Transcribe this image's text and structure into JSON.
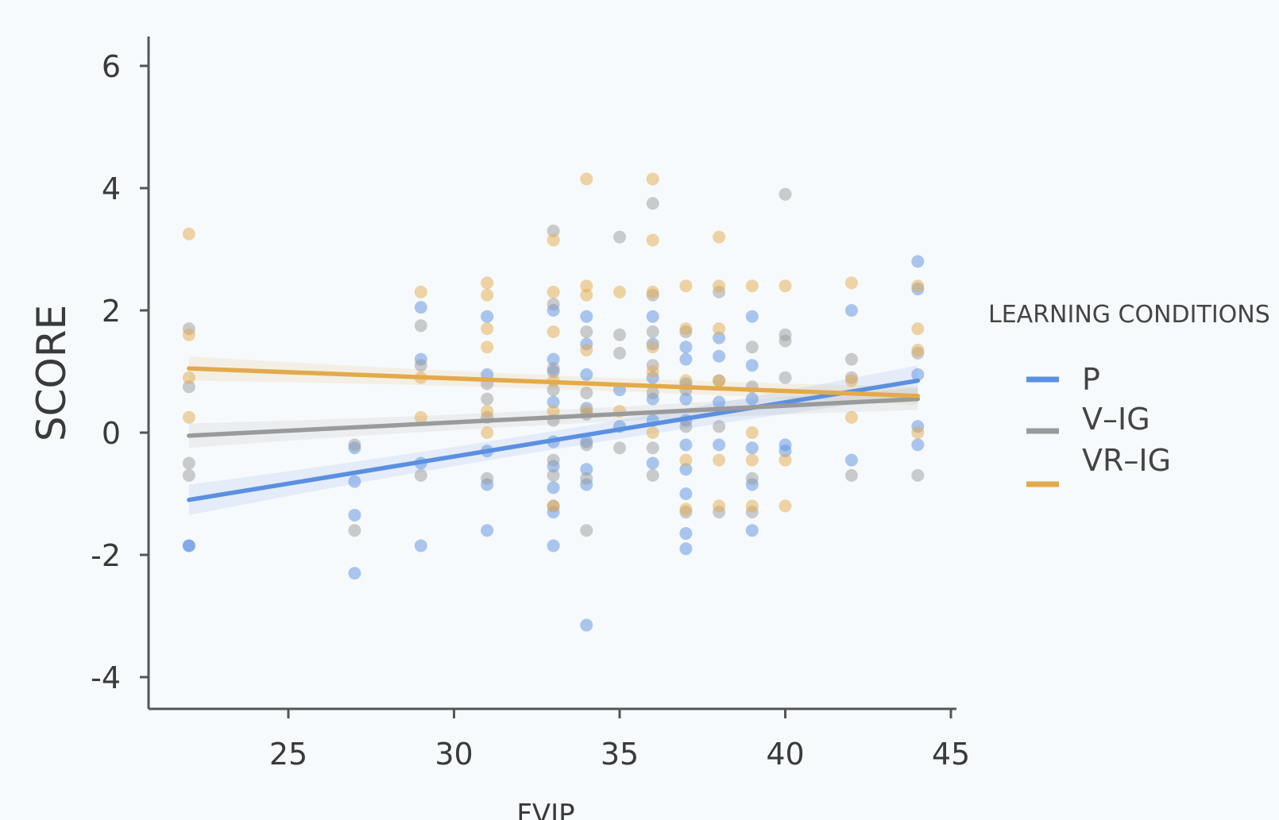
{
  "chart_data": {
    "type": "scatter",
    "xlabel": "FVIP",
    "ylabel": "SCORE",
    "xlim": [
      17.8,
      45
    ],
    "ylim": [
      -4.5,
      6.5
    ],
    "xticks": [
      25,
      30,
      35,
      40,
      45
    ],
    "yticks": [
      -4,
      -2,
      0,
      2,
      4,
      6
    ],
    "grid": false,
    "legend": {
      "title": "LEARNING CONDITIONS",
      "placement": "right"
    },
    "series": [
      {
        "name": "P",
        "color": "#5b8fe0",
        "fit": [
          [
            22,
            -1.1
          ],
          [
            44,
            0.85
          ]
        ],
        "band": [
          0.25,
          0.05,
          0.25
        ],
        "points": [
          [
            22,
            -1.85
          ],
          [
            22,
            -1.85
          ],
          [
            27,
            -0.25
          ],
          [
            27,
            -0.8
          ],
          [
            27,
            -1.35
          ],
          [
            27,
            -2.3
          ],
          [
            29,
            2.05
          ],
          [
            29,
            1.2
          ],
          [
            29,
            -0.5
          ],
          [
            29,
            -1.85
          ],
          [
            31,
            1.9
          ],
          [
            31,
            0.95
          ],
          [
            31,
            -0.3
          ],
          [
            31,
            -0.85
          ],
          [
            31,
            -1.6
          ],
          [
            33,
            2.0
          ],
          [
            33,
            1.2
          ],
          [
            33,
            1.0
          ],
          [
            33,
            0.5
          ],
          [
            33,
            -0.15
          ],
          [
            33,
            -0.55
          ],
          [
            33,
            -0.9
          ],
          [
            33,
            -1.3
          ],
          [
            33,
            -1.85
          ],
          [
            34,
            1.9
          ],
          [
            34,
            1.45
          ],
          [
            34,
            0.95
          ],
          [
            34,
            0.4
          ],
          [
            34,
            -0.15
          ],
          [
            34,
            -0.6
          ],
          [
            34,
            -0.85
          ],
          [
            34,
            -3.15
          ],
          [
            35,
            0.7
          ],
          [
            35,
            0.1
          ],
          [
            36,
            1.9
          ],
          [
            36,
            1.45
          ],
          [
            36,
            0.9
          ],
          [
            36,
            0.55
          ],
          [
            36,
            0.2
          ],
          [
            36,
            -0.5
          ],
          [
            37,
            1.4
          ],
          [
            37,
            1.2
          ],
          [
            37,
            0.8
          ],
          [
            37,
            0.55
          ],
          [
            37,
            0.2
          ],
          [
            37,
            -0.2
          ],
          [
            37,
            -0.6
          ],
          [
            37,
            -1.0
          ],
          [
            37,
            -1.65
          ],
          [
            37,
            -1.9
          ],
          [
            38,
            1.55
          ],
          [
            38,
            1.25
          ],
          [
            38,
            0.5
          ],
          [
            38,
            -0.2
          ],
          [
            39,
            1.9
          ],
          [
            39,
            1.1
          ],
          [
            39,
            0.55
          ],
          [
            39,
            -0.25
          ],
          [
            39,
            -0.85
          ],
          [
            39,
            -1.6
          ],
          [
            40,
            -0.2
          ],
          [
            40,
            -0.3
          ],
          [
            42,
            2.0
          ],
          [
            42,
            -0.45
          ],
          [
            44,
            2.8
          ],
          [
            44,
            2.35
          ],
          [
            44,
            0.95
          ],
          [
            44,
            0.1
          ],
          [
            44,
            -0.2
          ]
        ]
      },
      {
        "name": "V–IG",
        "color": "#9a9a9a",
        "fit": [
          [
            22,
            -0.05
          ],
          [
            44,
            0.55
          ]
        ],
        "band": [
          0.2,
          0.05,
          0.18
        ],
        "points": [
          [
            22,
            1.7
          ],
          [
            22,
            0.75
          ],
          [
            22,
            -0.5
          ],
          [
            22,
            -0.7
          ],
          [
            27,
            -0.2
          ],
          [
            27,
            -1.6
          ],
          [
            29,
            1.75
          ],
          [
            29,
            1.1
          ],
          [
            29,
            -0.7
          ],
          [
            31,
            0.8
          ],
          [
            31,
            0.55
          ],
          [
            31,
            0.25
          ],
          [
            31,
            -0.75
          ],
          [
            33,
            3.3
          ],
          [
            33,
            2.1
          ],
          [
            33,
            1.05
          ],
          [
            33,
            0.7
          ],
          [
            33,
            0.2
          ],
          [
            33,
            -0.45
          ],
          [
            33,
            -0.7
          ],
          [
            33,
            -1.2
          ],
          [
            34,
            1.65
          ],
          [
            34,
            0.65
          ],
          [
            34,
            0.3
          ],
          [
            34,
            -0.2
          ],
          [
            34,
            -0.75
          ],
          [
            34,
            -1.6
          ],
          [
            35,
            3.2
          ],
          [
            35,
            1.6
          ],
          [
            35,
            1.3
          ],
          [
            35,
            -0.25
          ],
          [
            36,
            3.75
          ],
          [
            36,
            2.25
          ],
          [
            36,
            1.65
          ],
          [
            36,
            1.1
          ],
          [
            36,
            0.65
          ],
          [
            36,
            -0.25
          ],
          [
            36,
            -0.7
          ],
          [
            37,
            1.65
          ],
          [
            37,
            0.7
          ],
          [
            37,
            0.1
          ],
          [
            37,
            -1.3
          ],
          [
            38,
            2.3
          ],
          [
            38,
            0.85
          ],
          [
            38,
            0.1
          ],
          [
            38,
            -1.3
          ],
          [
            39,
            1.4
          ],
          [
            39,
            0.75
          ],
          [
            39,
            -0.75
          ],
          [
            39,
            -1.3
          ],
          [
            40,
            3.9
          ],
          [
            40,
            1.6
          ],
          [
            40,
            1.5
          ],
          [
            40,
            0.9
          ],
          [
            42,
            1.2
          ],
          [
            42,
            0.9
          ],
          [
            42,
            -0.7
          ],
          [
            44,
            1.3
          ],
          [
            44,
            -0.7
          ]
        ]
      },
      {
        "name": "VR–IG",
        "color": "#e3aa4b",
        "fit": [
          [
            22,
            1.05
          ],
          [
            44,
            0.6
          ]
        ],
        "band": [
          0.2,
          0.05,
          0.15
        ],
        "points": [
          [
            22,
            3.25
          ],
          [
            22,
            1.6
          ],
          [
            22,
            0.9
          ],
          [
            22,
            0.25
          ],
          [
            29,
            2.3
          ],
          [
            29,
            0.9
          ],
          [
            29,
            0.25
          ],
          [
            31,
            2.45
          ],
          [
            31,
            2.25
          ],
          [
            31,
            1.7
          ],
          [
            31,
            1.4
          ],
          [
            31,
            0.35
          ],
          [
            31,
            0.0
          ],
          [
            33,
            3.15
          ],
          [
            33,
            2.3
          ],
          [
            33,
            1.65
          ],
          [
            33,
            0.85
          ],
          [
            33,
            0.35
          ],
          [
            33,
            -1.2
          ],
          [
            34,
            4.15
          ],
          [
            34,
            2.4
          ],
          [
            34,
            2.25
          ],
          [
            34,
            1.35
          ],
          [
            34,
            0.35
          ],
          [
            35,
            2.3
          ],
          [
            35,
            0.35
          ],
          [
            36,
            4.15
          ],
          [
            36,
            3.15
          ],
          [
            36,
            2.3
          ],
          [
            36,
            1.4
          ],
          [
            36,
            1.0
          ],
          [
            36,
            0.0
          ],
          [
            37,
            2.4
          ],
          [
            37,
            1.7
          ],
          [
            37,
            0.85
          ],
          [
            37,
            -0.45
          ],
          [
            37,
            -1.25
          ],
          [
            38,
            3.2
          ],
          [
            38,
            2.4
          ],
          [
            38,
            1.7
          ],
          [
            38,
            0.85
          ],
          [
            38,
            -0.45
          ],
          [
            38,
            -1.2
          ],
          [
            39,
            2.4
          ],
          [
            39,
            0.0
          ],
          [
            39,
            -0.45
          ],
          [
            39,
            -1.2
          ],
          [
            40,
            2.4
          ],
          [
            40,
            -0.45
          ],
          [
            40,
            -1.2
          ],
          [
            42,
            2.45
          ],
          [
            42,
            0.85
          ],
          [
            42,
            0.25
          ],
          [
            44,
            2.4
          ],
          [
            44,
            1.7
          ],
          [
            44,
            1.35
          ],
          [
            44,
            0.0
          ]
        ]
      }
    ]
  }
}
